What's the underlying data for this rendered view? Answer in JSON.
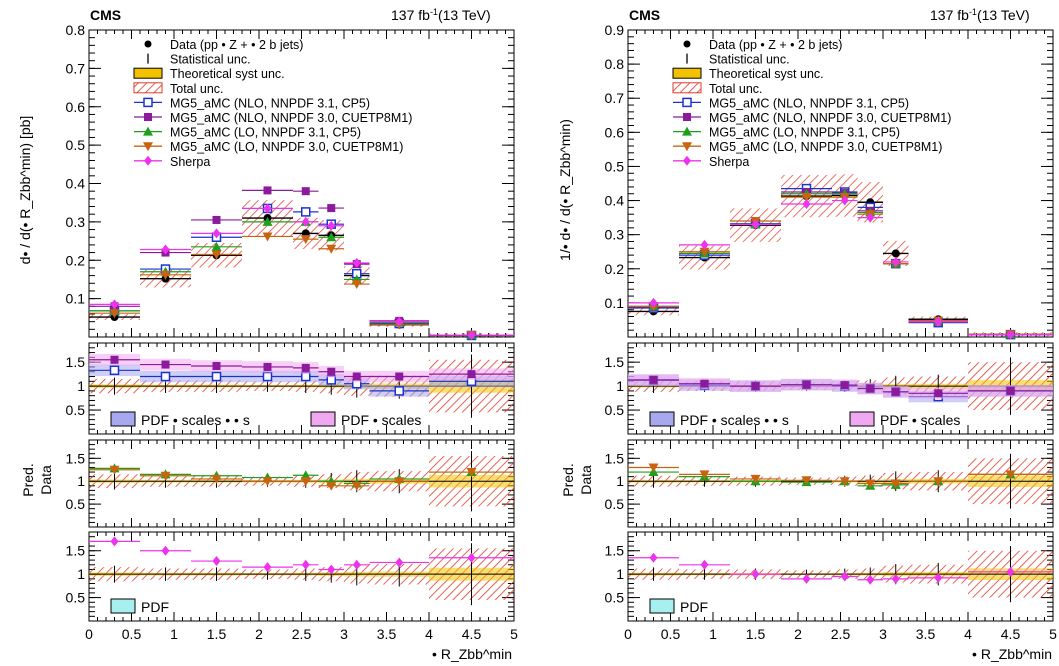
{
  "headers": {
    "experiment": "CMS",
    "luminosity": "137 fb",
    "lumi_sup": "-1",
    "energy": "(13 TeV)"
  },
  "axis_labels": {
    "left_ylabel": "d• / d(• R_Zbb^min) [pb]",
    "right_ylabel": "1/• d• / d(• R_Zbb^min)",
    "ratio_ylabel_top": "Pred.",
    "ratio_ylabel_bottom": "Data",
    "xlabel": "• R_Zbb^min"
  },
  "colors": {
    "data": "#000000",
    "total_unc": "#e23a2a",
    "theory_syst": "#f2c200",
    "mg5_nlo_cp5": "#1a33cc",
    "mg5_nlo_cuetp8m1": "#8b1a9c",
    "mg5_lo_cp5": "#1ea01e",
    "mg5_lo_cuetp8m1": "#c86410",
    "sherpa": "#ee33ee",
    "band_pdf_scales_alphas": "#a8a8ee",
    "band_pdf_scales": "#f0a8f0",
    "band_pdf": "#a8f0f0"
  },
  "legend": {
    "entries": [
      {
        "key": "data",
        "label": "Data (pp •   Z + •  2 b jets)"
      },
      {
        "key": "stat",
        "label": "Statistical unc."
      },
      {
        "key": "theory_syst",
        "label": "Theoretical syst unc."
      },
      {
        "key": "total_unc",
        "label": "Total unc."
      },
      {
        "key": "mg5_nlo_cp5",
        "label": "MG5_aMC (NLO, NNPDF 3.1, CP5)"
      },
      {
        "key": "mg5_nlo_cuetp8m1",
        "label": "MG5_aMC (NLO, NNPDF 3.0, CUETP8M1)"
      },
      {
        "key": "mg5_lo_cp5",
        "label": "MG5_aMC (LO, NNPDF 3.1, CP5)"
      },
      {
        "key": "mg5_lo_cuetp8m1",
        "label": "MG5_aMC (LO, NNPDF 3.0, CUETP8M1)"
      },
      {
        "key": "sherpa",
        "label": "Sherpa"
      }
    ],
    "ratio1": [
      "PDF •  scales •  • s",
      "PDF •  scales"
    ],
    "ratio3": [
      "PDF"
    ]
  },
  "chart_data": [
    {
      "type": "scatter",
      "panel": "left-main",
      "xlim": [
        0,
        5
      ],
      "ylim": [
        0,
        0.8
      ],
      "xticks": [
        0,
        0.5,
        1,
        1.5,
        2,
        2.5,
        3,
        3.5,
        4,
        4.5,
        5
      ],
      "yticks": [
        0.1,
        0.2,
        0.3,
        0.4,
        0.5,
        0.6,
        0.7,
        0.8
      ],
      "bins": [
        0,
        0.6,
        1.2,
        1.8,
        2.4,
        2.7,
        3.0,
        3.3,
        4.0,
        5.0
      ],
      "series": [
        {
          "name": "Data (pp •   Z + •  2 b jets)",
          "key": "data",
          "values": [
            0.052,
            0.152,
            0.213,
            0.31,
            0.27,
            0.265,
            0.16,
            0.032,
            0.004
          ]
        },
        {
          "name": "MG5_aMC (NLO, NNPDF 3.1, CP5)",
          "key": "mg5_nlo_cp5",
          "values": [
            0.068,
            0.177,
            0.26,
            0.335,
            0.326,
            0.294,
            0.165,
            0.035,
            0.004
          ]
        },
        {
          "name": "MG5_aMC (NLO, NNPDF 3.0, CUETP8M1)",
          "key": "mg5_nlo_cuetp8m1",
          "values": [
            0.08,
            0.22,
            0.305,
            0.382,
            0.38,
            0.336,
            0.19,
            0.042,
            0.005
          ]
        },
        {
          "name": "MG5_aMC (LO, NNPDF 3.1, CP5)",
          "key": "mg5_lo_cp5",
          "values": [
            0.068,
            0.17,
            0.235,
            0.3,
            0.3,
            0.26,
            0.15,
            0.038,
            0.005
          ]
        },
        {
          "name": "MG5_aMC (LO, NNPDF 3.0, CUETP8M1)",
          "key": "mg5_lo_cuetp8m1",
          "values": [
            0.062,
            0.162,
            0.215,
            0.262,
            0.255,
            0.23,
            0.138,
            0.033,
            0.005
          ]
        },
        {
          "name": "Sherpa",
          "key": "sherpa",
          "values": [
            0.085,
            0.228,
            0.27,
            0.335,
            0.3,
            0.29,
            0.193,
            0.04,
            0.005
          ]
        }
      ]
    },
    {
      "type": "scatter",
      "panel": "right-main",
      "xlim": [
        0,
        5
      ],
      "ylim": [
        0,
        0.9
      ],
      "xticks": [
        0,
        0.5,
        1,
        1.5,
        2,
        2.5,
        3,
        3.5,
        4,
        4.5,
        5
      ],
      "yticks": [
        0.1,
        0.2,
        0.3,
        0.4,
        0.5,
        0.6,
        0.7,
        0.8,
        0.9
      ],
      "bins": [
        0,
        0.6,
        1.2,
        1.8,
        2.4,
        2.7,
        3.0,
        3.3,
        4.0,
        5.0
      ],
      "series": [
        {
          "name": "Data (pp •   Z + •  2 b jets)",
          "key": "data",
          "values": [
            0.075,
            0.233,
            0.328,
            0.413,
            0.415,
            0.395,
            0.245,
            0.052,
            0.008
          ]
        },
        {
          "name": "MG5_aMC (NLO, NNPDF 3.1, CP5)",
          "key": "mg5_nlo_cp5",
          "values": [
            0.085,
            0.24,
            0.332,
            0.435,
            0.425,
            0.38,
            0.215,
            0.042,
            0.007
          ]
        },
        {
          "name": "MG5_aMC (NLO, NNPDF 3.0, CUETP8M1)",
          "key": "mg5_nlo_cuetp8m1",
          "values": [
            0.088,
            0.245,
            0.33,
            0.425,
            0.422,
            0.37,
            0.215,
            0.045,
            0.007
          ]
        },
        {
          "name": "MG5_aMC (LO, NNPDF 3.1, CP5)",
          "key": "mg5_lo_cp5",
          "values": [
            0.09,
            0.245,
            0.33,
            0.42,
            0.42,
            0.365,
            0.215,
            0.048,
            0.008
          ]
        },
        {
          "name": "MG5_aMC (LO, NNPDF 3.0, CUETP8M1)",
          "key": "mg5_lo_cuetp8m1",
          "values": [
            0.09,
            0.25,
            0.34,
            0.41,
            0.41,
            0.36,
            0.215,
            0.048,
            0.008
          ]
        },
        {
          "name": "Sherpa",
          "key": "sherpa",
          "values": [
            0.1,
            0.27,
            0.33,
            0.39,
            0.4,
            0.35,
            0.22,
            0.045,
            0.007
          ]
        }
      ]
    },
    {
      "type": "scatter",
      "panel": "left-ratio-1",
      "ylim": [
        0,
        1.9
      ],
      "yticks": [
        0.5,
        1,
        1.5
      ],
      "total_unc": [
        0.15,
        0.12,
        0.12,
        0.1,
        0.12,
        0.15,
        0.2,
        0.22,
        0.55
      ],
      "series": [
        {
          "name": "MG5_aMC (NLO, NNPDF 3.1, CP5)",
          "key": "mg5_nlo_cp5",
          "values": [
            1.33,
            1.2,
            1.2,
            1.2,
            1.2,
            1.13,
            1.05,
            0.9,
            1.1
          ]
        },
        {
          "name": "MG5_aMC (NLO, NNPDF 3.0, CUETP8M1)",
          "key": "mg5_nlo_cuetp8m1",
          "values": [
            1.55,
            1.45,
            1.42,
            1.4,
            1.38,
            1.3,
            1.2,
            1.2,
            1.25
          ]
        }
      ]
    },
    {
      "type": "scatter",
      "panel": "left-ratio-2",
      "ylim": [
        0,
        1.9
      ],
      "yticks": [
        0.5,
        1,
        1.5
      ],
      "total_unc": [
        0.15,
        0.12,
        0.12,
        0.1,
        0.12,
        0.15,
        0.2,
        0.22,
        0.55
      ],
      "series": [
        {
          "name": "MG5_aMC (LO, NNPDF 3.1, CP5)",
          "key": "mg5_lo_cp5",
          "values": [
            1.28,
            1.15,
            1.12,
            1.08,
            1.13,
            1.0,
            0.95,
            1.05,
            1.2
          ]
        },
        {
          "name": "MG5_aMC (LO, NNPDF 3.0, CUETP8M1)",
          "key": "mg5_lo_cuetp8m1",
          "values": [
            1.25,
            1.12,
            1.05,
            1.0,
            1.0,
            0.9,
            0.9,
            1.0,
            1.2
          ]
        }
      ]
    },
    {
      "type": "scatter",
      "panel": "left-ratio-3",
      "ylim": [
        0,
        1.9
      ],
      "yticks": [
        0.5,
        1,
        1.5
      ],
      "total_unc": [
        0.15,
        0.12,
        0.12,
        0.1,
        0.12,
        0.15,
        0.2,
        0.22,
        0.55
      ],
      "series": [
        {
          "name": "Sherpa",
          "key": "sherpa",
          "values": [
            1.7,
            1.5,
            1.28,
            1.15,
            1.2,
            1.1,
            1.2,
            1.25,
            1.35
          ]
        }
      ]
    },
    {
      "type": "scatter",
      "panel": "right-ratio-1",
      "ylim": [
        0,
        1.9
      ],
      "yticks": [
        0.5,
        1,
        1.5
      ],
      "total_unc": [
        0.12,
        0.1,
        0.1,
        0.08,
        0.1,
        0.12,
        0.18,
        0.2,
        0.5
      ],
      "series": [
        {
          "name": "MG5_aMC (NLO, NNPDF 3.1, CP5)",
          "key": "mg5_nlo_cp5",
          "values": [
            1.12,
            1.02,
            1.0,
            1.03,
            1.0,
            0.95,
            0.88,
            0.78,
            0.9
          ]
        },
        {
          "name": "MG5_aMC (NLO, NNPDF 3.0, CUETP8M1)",
          "key": "mg5_nlo_cuetp8m1",
          "values": [
            1.13,
            1.05,
            1.0,
            1.03,
            1.02,
            0.95,
            0.88,
            0.85,
            0.9
          ]
        }
      ]
    },
    {
      "type": "scatter",
      "panel": "right-ratio-2",
      "ylim": [
        0,
        1.9
      ],
      "yticks": [
        0.5,
        1,
        1.5
      ],
      "total_unc": [
        0.12,
        0.1,
        0.1,
        0.08,
        0.1,
        0.12,
        0.18,
        0.2,
        0.5
      ],
      "series": [
        {
          "name": "MG5_aMC (LO, NNPDF 3.1, CP5)",
          "key": "mg5_lo_cp5",
          "values": [
            1.2,
            1.1,
            1.0,
            0.98,
            1.0,
            0.9,
            0.92,
            1.0,
            1.15
          ]
        },
        {
          "name": "MG5_aMC (LO, NNPDF 3.0, CUETP8M1)",
          "key": "mg5_lo_cuetp8m1",
          "values": [
            1.3,
            1.15,
            1.05,
            1.02,
            1.0,
            0.95,
            0.95,
            1.0,
            1.15
          ]
        }
      ]
    },
    {
      "type": "scatter",
      "panel": "right-ratio-3",
      "ylim": [
        0,
        1.9
      ],
      "yticks": [
        0.5,
        1,
        1.5
      ],
      "total_unc": [
        0.12,
        0.1,
        0.1,
        0.08,
        0.1,
        0.12,
        0.18,
        0.2,
        0.5
      ],
      "series": [
        {
          "name": "Sherpa",
          "key": "sherpa",
          "values": [
            1.35,
            1.2,
            1.0,
            0.9,
            0.95,
            0.88,
            0.9,
            0.92,
            1.05
          ]
        }
      ]
    }
  ]
}
